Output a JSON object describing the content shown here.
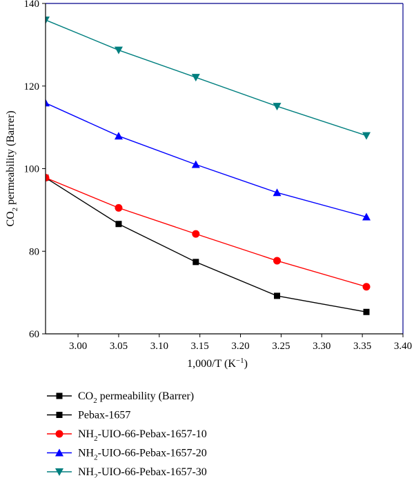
{
  "chart_data": {
    "type": "line",
    "xlabel_parts": {
      "base": "1,000/T (K",
      "sup": "−1",
      "end": ")"
    },
    "ylabel_parts": {
      "base": "CO",
      "sub": "2",
      "rest": " permeability (Barrer)"
    },
    "xlim": [
      2.96,
      3.4
    ],
    "ylim": [
      60,
      140
    ],
    "xticks": [
      "3.00",
      "3.05",
      "3.10",
      "3.15",
      "3.20",
      "3.25",
      "3.30",
      "3.35",
      "3.40"
    ],
    "yticks": [
      "60",
      "80",
      "100",
      "120",
      "140"
    ],
    "x": [
      2.96,
      3.05,
      3.145,
      3.245,
      3.355
    ],
    "grid": false,
    "legend_position": "bottom",
    "series": [
      {
        "name": "Pebax-1657",
        "color": "#000000",
        "marker": "square",
        "values": [
          97.8,
          86.6,
          77.4,
          69.2,
          65.3
        ]
      },
      {
        "name": "NH2-UIO-66-Pebax-1657-10",
        "color": "#ff0000",
        "marker": "circle",
        "values": [
          97.8,
          90.5,
          84.2,
          77.7,
          71.4
        ]
      },
      {
        "name": "NH2-UIO-66-Pebax-1657-20",
        "color": "#0000ff",
        "marker": "triangle-up",
        "values": [
          115.9,
          107.9,
          101.0,
          94.2,
          88.3
        ]
      },
      {
        "name": "NH2-UIO-66-Pebax-1657-30",
        "color": "#007f7f",
        "marker": "triangle-down",
        "values": [
          136.0,
          128.7,
          122.1,
          115.1,
          108.0
        ]
      }
    ],
    "legend": [
      {
        "color": "#000000",
        "marker": "square",
        "parts": {
          "pre": "CO",
          "sub": "2",
          "post": " permeability (Barrer)"
        }
      },
      {
        "color": "#000000",
        "marker": "square",
        "parts": {
          "pre": "Pebax-1657",
          "sub": "",
          "post": ""
        }
      },
      {
        "color": "#ff0000",
        "marker": "circle",
        "parts": {
          "pre": "NH",
          "sub": "2",
          "post": "-UIO-66-Pebax-1657-10"
        }
      },
      {
        "color": "#0000ff",
        "marker": "triangle-up",
        "parts": {
          "pre": "NH",
          "sub": "2",
          "post": "-UIO-66-Pebax-1657-20"
        }
      },
      {
        "color": "#007f7f",
        "marker": "triangle-down",
        "parts": {
          "pre": "NH",
          "sub": "2",
          "post": "-UIO-66-Pebax-1657-30"
        }
      }
    ],
    "frame_colors": {
      "left": "#000000",
      "bottom": "#000000",
      "top": "#00008b",
      "right": "#00008b"
    }
  }
}
